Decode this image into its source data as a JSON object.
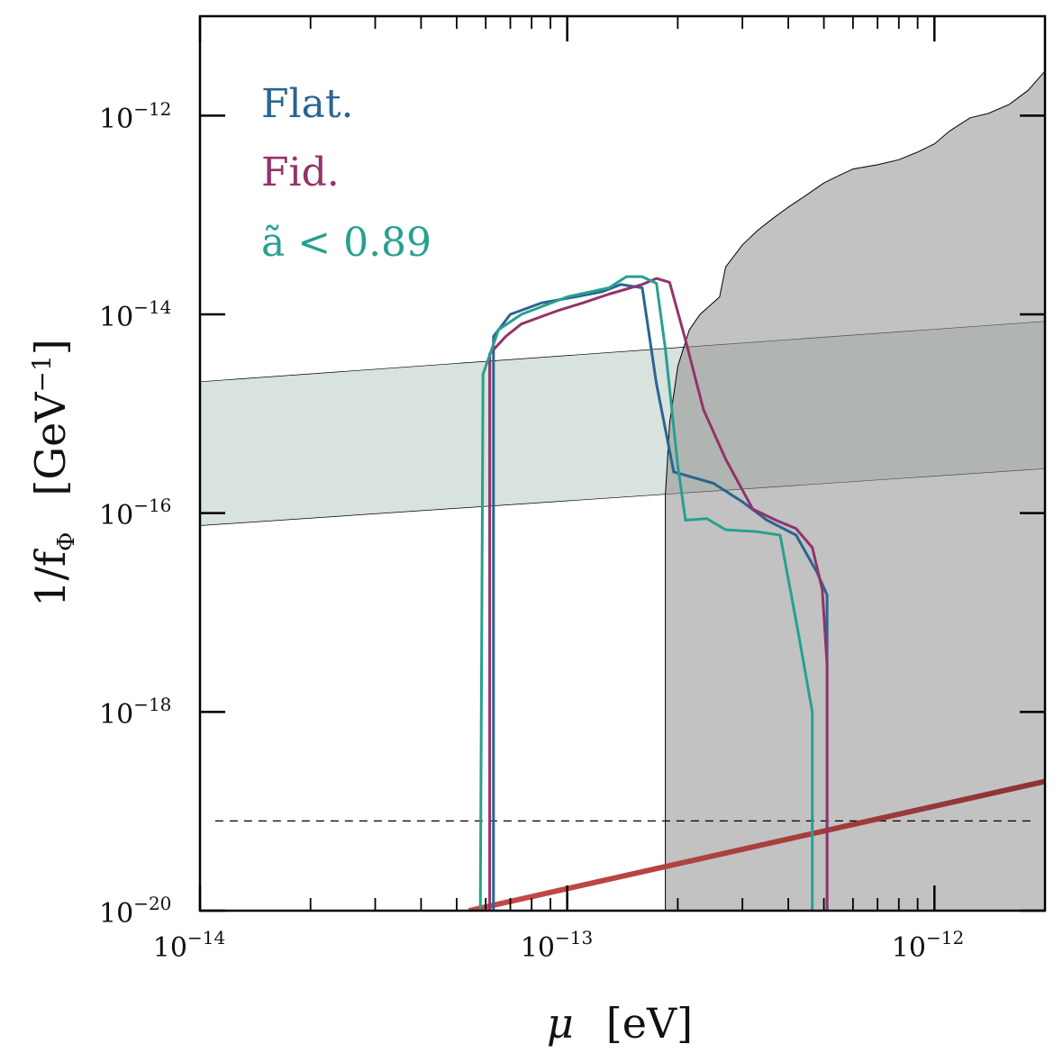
{
  "chart_data": {
    "type": "line",
    "x_scale": "log",
    "y_scale": "log",
    "xlim": [
      1e-14,
      2e-12
    ],
    "ylim": [
      1e-20,
      1e-11
    ],
    "xlabel": {
      "symbol": "μ",
      "unit": "[eV]"
    },
    "ylabel": {
      "symbol": "1/f",
      "subscript": "Φ",
      "unit": "[GeV",
      "unit_exp": "−1",
      "unit_close": "]"
    },
    "x_ticks": [
      {
        "value": 1e-14,
        "base": "10",
        "exp": "−14"
      },
      {
        "value": 1e-13,
        "base": "10",
        "exp": "−13"
      },
      {
        "value": 1e-12,
        "base": "10",
        "exp": "−12"
      }
    ],
    "y_ticks": [
      {
        "value": 1e-20,
        "base": "10",
        "exp": "−20"
      },
      {
        "value": 1e-18,
        "base": "10",
        "exp": "−18"
      },
      {
        "value": 1e-16,
        "base": "10",
        "exp": "−16"
      },
      {
        "value": 1e-14,
        "base": "10",
        "exp": "−14"
      },
      {
        "value": 1e-12,
        "base": "10",
        "exp": "−12"
      }
    ],
    "legend": [
      {
        "label": "Flat.",
        "color": "#2a6592"
      },
      {
        "label": "Fid.",
        "color": "#93336a"
      },
      {
        "label": "ã < 0.89",
        "color": "#27a08f"
      }
    ],
    "series": [
      {
        "name": "Flat.",
        "color": "#2a6592",
        "points": [
          [
            6.3e-14,
            1e-20
          ],
          [
            6.3e-14,
            6e-15
          ],
          [
            7e-14,
            1e-14
          ],
          [
            8.5e-14,
            1.3e-14
          ],
          [
            1.05e-13,
            1.5e-14
          ],
          [
            1.25e-13,
            1.7e-14
          ],
          [
            1.4e-13,
            2e-14
          ],
          [
            1.6e-13,
            1.85e-14
          ],
          [
            1.75e-13,
            2e-15
          ],
          [
            1.95e-13,
            2.6e-16
          ],
          [
            2.5e-13,
            2e-16
          ],
          [
            3e-13,
            1.3e-16
          ],
          [
            3.5e-13,
            8.5e-17
          ],
          [
            4.2e-13,
            6e-17
          ],
          [
            4.8e-13,
            2.5e-17
          ],
          [
            5.1e-13,
            1.5e-17
          ],
          [
            5.1e-13,
            1e-20
          ]
        ]
      },
      {
        "name": "Fid.",
        "color": "#93336a",
        "points": [
          [
            6.15e-14,
            1e-20
          ],
          [
            6.15e-14,
            4e-15
          ],
          [
            6.8e-14,
            6e-15
          ],
          [
            7.5e-14,
            8e-15
          ],
          [
            8.5e-14,
            9.5e-15
          ],
          [
            9.5e-14,
            1.1e-14
          ],
          [
            1.1e-13,
            1.3e-14
          ],
          [
            1.3e-13,
            1.6e-14
          ],
          [
            1.6e-13,
            2e-14
          ],
          [
            1.75e-13,
            2.3e-14
          ],
          [
            1.9e-13,
            2.1e-14
          ],
          [
            2.1e-13,
            5.5e-15
          ],
          [
            2.35e-13,
            1.1e-15
          ],
          [
            2.7e-13,
            3.5e-16
          ],
          [
            3.2e-13,
            1.1e-16
          ],
          [
            3.7e-13,
            8.5e-17
          ],
          [
            4.2e-13,
            7e-17
          ],
          [
            4.65e-13,
            4.5e-17
          ],
          [
            4.95e-13,
            1.7e-17
          ],
          [
            5.1e-13,
            3e-18
          ],
          [
            5.1e-13,
            1e-20
          ]
        ]
      },
      {
        "name": "ã < 0.89",
        "color": "#27a08f",
        "points": [
          [
            5.8e-14,
            1e-20
          ],
          [
            5.9e-14,
            2.5e-15
          ],
          [
            6.5e-14,
            7e-15
          ],
          [
            7.5e-14,
            1e-14
          ],
          [
            1e-13,
            1.5e-14
          ],
          [
            1.3e-13,
            1.85e-14
          ],
          [
            1.45e-13,
            2.4e-14
          ],
          [
            1.6e-13,
            2.4e-14
          ],
          [
            1.75e-13,
            2.05e-14
          ],
          [
            1.85e-13,
            4.5e-15
          ],
          [
            2e-13,
            3e-16
          ],
          [
            2.1e-13,
            8.5e-17
          ],
          [
            2.4e-13,
            8.8e-17
          ],
          [
            2.7e-13,
            6.8e-17
          ],
          [
            3.3e-13,
            6.5e-17
          ],
          [
            3.8e-13,
            6e-17
          ],
          [
            4.25e-13,
            6.5e-18
          ],
          [
            4.65e-13,
            1e-18
          ],
          [
            4.65e-13,
            1e-20
          ]
        ]
      },
      {
        "name": "red-limit-line",
        "color": "#c04a4a",
        "color_end": "#8b3434",
        "points": [
          [
            5.4e-14,
            1e-20
          ],
          [
            2e-12,
            2e-19
          ]
        ]
      }
    ],
    "shaded_regions": [
      {
        "name": "gray-excluded-region",
        "color": "#bfbfbf",
        "boundary": [
          [
            1.85e-13,
            1e-20
          ],
          [
            1.85e-13,
            1.5e-16
          ],
          [
            1.9e-13,
            8e-16
          ],
          [
            2e-13,
            3e-15
          ],
          [
            2.15e-13,
            7e-15
          ],
          [
            2.3e-13,
            1e-14
          ],
          [
            2.6e-13,
            1.5e-14
          ],
          [
            2.7e-13,
            3e-14
          ],
          [
            3e-13,
            5e-14
          ],
          [
            3.3e-13,
            7e-14
          ],
          [
            3.6e-13,
            9e-14
          ],
          [
            4e-13,
            1.2e-13
          ],
          [
            4.5e-13,
            1.6e-13
          ],
          [
            5e-13,
            2.1e-13
          ],
          [
            5.5e-13,
            2.5e-13
          ],
          [
            6e-13,
            2.9e-13
          ],
          [
            7e-13,
            3.2e-13
          ],
          [
            8e-13,
            3.6e-13
          ],
          [
            9e-13,
            4.3e-13
          ],
          [
            1e-12,
            5.2e-13
          ],
          [
            1.1e-12,
            7e-13
          ],
          [
            1.25e-12,
            9.5e-13
          ],
          [
            1.4e-12,
            1.05e-12
          ],
          [
            1.6e-12,
            1.3e-12
          ],
          [
            1.8e-12,
            1.8e-12
          ],
          [
            2e-12,
            2.8e-12
          ],
          [
            2e-12,
            1e-20
          ]
        ]
      },
      {
        "name": "green-band",
        "color": "#d7e3dc",
        "lower": [
          [
            1e-14,
            7.5e-17
          ],
          [
            2e-12,
            2.8e-16
          ]
        ],
        "upper": [
          [
            1e-14,
            2.1e-15
          ],
          [
            2e-12,
            8.5e-15
          ]
        ]
      }
    ],
    "reference_line": {
      "name": "dashed-horizontal-line",
      "y": 8e-20,
      "x_range": [
        1.1e-14,
        1.9e-12
      ],
      "style": "dashed"
    }
  }
}
